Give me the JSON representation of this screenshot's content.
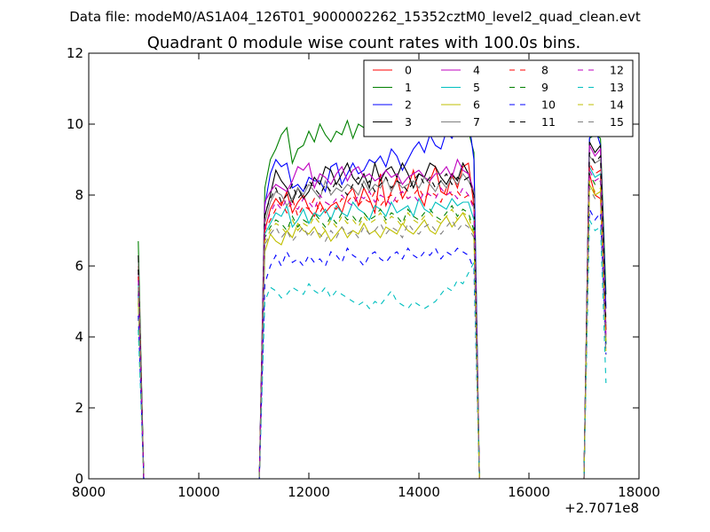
{
  "chart_data": {
    "type": "line",
    "suptitle": "Data file: modeM0/AS1A04_126T01_9000002262_15352cztM0_level2_quad_clean.evt",
    "title": "Quadrant 0 module wise count rates with 100.0s bins.",
    "xlabel": "",
    "ylabel": "",
    "x_offset_label": "+2.7071e8",
    "xlim": [
      8000,
      18000
    ],
    "ylim": [
      0,
      12
    ],
    "xticks": [
      8000,
      10000,
      12000,
      14000,
      16000,
      18000
    ],
    "yticks": [
      0,
      2,
      4,
      6,
      8,
      10,
      12
    ],
    "grid": false,
    "legend": {
      "placement": "top-right",
      "columns": 4
    },
    "x": [
      8900,
      9000,
      11100,
      11200,
      11300,
      11400,
      11500,
      11600,
      11700,
      11800,
      11900,
      12000,
      12100,
      12200,
      12300,
      12400,
      12500,
      12600,
      12700,
      12800,
      12900,
      13000,
      13100,
      13200,
      13300,
      13400,
      13500,
      13600,
      13700,
      13800,
      13900,
      14000,
      14100,
      14200,
      14300,
      14400,
      14500,
      14600,
      14700,
      14800,
      14900,
      15000,
      15100,
      16900,
      17000,
      17100,
      17200,
      17300,
      17400
    ],
    "series": [
      {
        "name": "0",
        "color": "#ff0000",
        "dash": "solid",
        "values": [
          6.0,
          0.0,
          0.0,
          7.0,
          7.6,
          7.9,
          7.7,
          8.1,
          7.5,
          7.8,
          8.0,
          7.6,
          7.4,
          7.8,
          7.5,
          7.7,
          7.8,
          7.5,
          8.0,
          8.2,
          7.7,
          8.2,
          7.9,
          7.5,
          8.6,
          7.7,
          8.1,
          8.5,
          7.9,
          8.2,
          8.7,
          8.0,
          7.7,
          8.4,
          8.8,
          8.1,
          8.0,
          8.6,
          8.2,
          8.8,
          8.9,
          7.7,
          0.0,
          0.0,
          0.0,
          8.6,
          8.0,
          7.9,
          3.8
        ]
      },
      {
        "name": "1",
        "color": "#008000",
        "dash": "solid",
        "values": [
          6.7,
          0.0,
          0.0,
          8.2,
          9.0,
          9.3,
          9.7,
          9.9,
          8.9,
          9.3,
          9.4,
          9.8,
          9.5,
          10.0,
          9.7,
          9.5,
          9.8,
          9.7,
          10.1,
          9.6,
          10.0,
          9.9,
          10.2,
          10.1,
          9.9,
          10.3,
          10.0,
          10.0,
          10.2,
          9.9,
          10.1,
          10.0,
          10.2,
          9.8,
          10.1,
          9.9,
          10.0,
          10.1,
          10.0,
          9.9,
          9.8,
          9.2,
          0.0,
          0.0,
          0.0,
          9.6,
          9.7,
          9.6,
          5.2
        ]
      },
      {
        "name": "2",
        "color": "#0000ff",
        "dash": "solid",
        "values": [
          5.2,
          0.0,
          0.0,
          7.7,
          8.6,
          9.0,
          8.8,
          8.9,
          8.2,
          8.3,
          8.1,
          8.5,
          8.4,
          8.4,
          8.1,
          8.8,
          8.9,
          8.3,
          8.6,
          8.9,
          8.6,
          8.7,
          9.0,
          8.9,
          9.1,
          8.8,
          9.3,
          9.1,
          8.7,
          9.0,
          9.3,
          9.5,
          9.2,
          9.7,
          9.4,
          9.3,
          9.8,
          9.6,
          9.9,
          9.7,
          10.2,
          9.0,
          0.0,
          0.0,
          0.0,
          9.6,
          9.9,
          9.4,
          4.8
        ]
      },
      {
        "name": "3",
        "color": "#000000",
        "dash": "solid",
        "values": [
          6.3,
          0.0,
          0.0,
          7.4,
          8.0,
          8.7,
          8.4,
          8.2,
          7.8,
          8.2,
          7.9,
          8.1,
          8.5,
          8.3,
          8.8,
          8.7,
          8.3,
          8.6,
          8.9,
          8.5,
          8.3,
          8.6,
          8.2,
          8.9,
          8.4,
          8.7,
          8.8,
          8.5,
          8.9,
          8.6,
          8.2,
          8.6,
          8.5,
          8.9,
          8.8,
          8.5,
          8.3,
          8.6,
          8.4,
          8.9,
          8.6,
          8.0,
          0.0,
          0.0,
          0.0,
          9.5,
          9.2,
          9.4,
          4.2
        ]
      },
      {
        "name": "4",
        "color": "#bf00bf",
        "dash": "solid",
        "values": [
          5.8,
          0.0,
          0.0,
          7.8,
          8.1,
          8.3,
          8.2,
          8.1,
          8.4,
          8.8,
          8.7,
          8.9,
          8.2,
          8.6,
          8.5,
          8.3,
          8.6,
          8.8,
          8.4,
          8.7,
          8.8,
          8.5,
          8.6,
          8.4,
          8.5,
          8.7,
          8.5,
          8.6,
          8.3,
          8.5,
          8.6,
          8.7,
          8.5,
          8.4,
          8.6,
          8.6,
          8.8,
          8.5,
          9.0,
          8.7,
          8.6,
          8.1,
          0.0,
          0.0,
          0.0,
          9.4,
          9.1,
          9.3,
          4.0
        ]
      },
      {
        "name": "5",
        "color": "#00bfbf",
        "dash": "solid",
        "values": [
          5.5,
          0.0,
          0.0,
          6.9,
          7.2,
          7.5,
          7.4,
          7.7,
          7.1,
          7.3,
          7.6,
          7.2,
          7.5,
          7.4,
          7.6,
          7.3,
          7.7,
          7.5,
          7.4,
          7.8,
          7.6,
          7.5,
          7.3,
          7.7,
          7.6,
          7.4,
          7.8,
          7.5,
          7.6,
          7.7,
          7.4,
          7.9,
          7.6,
          7.5,
          7.8,
          7.7,
          7.6,
          7.9,
          7.7,
          7.8,
          7.8,
          7.3,
          0.0,
          0.0,
          0.0,
          8.8,
          8.5,
          8.6,
          3.8
        ]
      },
      {
        "name": "6",
        "color": "#bfbf00",
        "dash": "solid",
        "values": [
          5.0,
          0.0,
          0.0,
          6.4,
          6.9,
          6.7,
          6.6,
          7.0,
          6.8,
          7.2,
          7.0,
          6.9,
          7.1,
          6.8,
          7.0,
          6.7,
          6.9,
          7.1,
          6.8,
          7.0,
          6.9,
          7.2,
          6.9,
          7.0,
          6.8,
          7.1,
          7.0,
          6.9,
          7.2,
          7.0,
          6.9,
          7.1,
          7.3,
          7.0,
          6.9,
          7.2,
          7.4,
          7.1,
          7.3,
          7.5,
          7.2,
          6.9,
          0.0,
          0.0,
          0.0,
          8.3,
          8.0,
          8.1,
          3.9
        ]
      },
      {
        "name": "7",
        "color": "#7f7f7f",
        "dash": "solid",
        "values": [
          6.1,
          0.0,
          0.0,
          7.2,
          7.8,
          8.1,
          8.0,
          7.7,
          7.9,
          8.2,
          8.0,
          8.3,
          8.1,
          7.9,
          8.4,
          8.0,
          8.2,
          8.1,
          8.3,
          8.2,
          8.0,
          8.4,
          8.1,
          8.3,
          8.2,
          8.5,
          8.1,
          8.4,
          8.2,
          8.3,
          8.4,
          8.2,
          8.5,
          8.3,
          8.1,
          8.4,
          8.2,
          8.5,
          8.3,
          8.6,
          8.4,
          8.1,
          0.0,
          0.0,
          0.0,
          9.1,
          8.9,
          9.0,
          4.3
        ]
      },
      {
        "name": "8",
        "color": "#ff0000",
        "dash": "dashed",
        "values": [
          5.7,
          0.0,
          0.0,
          7.0,
          7.3,
          7.6,
          7.8,
          7.5,
          7.9,
          7.4,
          7.7,
          7.6,
          7.9,
          7.5,
          7.8,
          7.7,
          7.6,
          7.9,
          7.8,
          8.0,
          7.7,
          7.9,
          7.8,
          8.1,
          7.7,
          7.9,
          8.0,
          7.8,
          8.1,
          7.9,
          8.0,
          8.2,
          7.9,
          8.1,
          8.0,
          7.8,
          8.2,
          8.0,
          8.1,
          7.9,
          8.0,
          7.7,
          0.0,
          0.0,
          0.0,
          8.9,
          8.6,
          8.7,
          4.1
        ]
      },
      {
        "name": "9",
        "color": "#008000",
        "dash": "dashed",
        "values": [
          5.3,
          0.0,
          0.0,
          6.8,
          7.1,
          7.3,
          7.2,
          7.0,
          7.4,
          7.1,
          7.3,
          7.2,
          7.5,
          7.3,
          7.1,
          7.4,
          7.2,
          7.5,
          7.3,
          7.4,
          7.2,
          7.5,
          7.3,
          7.4,
          7.6,
          7.3,
          7.5,
          7.4,
          7.2,
          7.6,
          7.4,
          7.3,
          7.5,
          7.6,
          7.4,
          7.3,
          7.5,
          7.7,
          7.4,
          7.6,
          7.5,
          7.0,
          0.0,
          0.0,
          0.0,
          8.6,
          8.3,
          8.4,
          3.7
        ]
      },
      {
        "name": "10",
        "color": "#0000ff",
        "dash": "dashed",
        "values": [
          4.6,
          0.0,
          0.0,
          5.5,
          6.0,
          6.3,
          6.0,
          6.4,
          6.1,
          6.2,
          6.0,
          6.3,
          6.1,
          6.2,
          6.0,
          6.4,
          6.3,
          6.1,
          6.5,
          6.3,
          6.2,
          6.0,
          6.3,
          6.4,
          6.2,
          6.1,
          6.3,
          6.4,
          6.2,
          6.5,
          6.3,
          6.2,
          6.4,
          6.3,
          6.5,
          6.2,
          6.4,
          6.3,
          6.5,
          6.4,
          6.3,
          5.9,
          0.0,
          0.0,
          0.0,
          7.6,
          7.3,
          7.5,
          3.5
        ]
      },
      {
        "name": "11",
        "color": "#000000",
        "dash": "dashed",
        "values": [
          5.9,
          0.0,
          0.0,
          7.5,
          7.9,
          8.2,
          7.8,
          8.0,
          8.3,
          7.9,
          8.1,
          8.4,
          8.2,
          8.0,
          8.3,
          8.1,
          8.4,
          8.2,
          8.0,
          8.3,
          8.5,
          8.2,
          8.4,
          8.1,
          8.3,
          8.5,
          8.2,
          8.4,
          8.3,
          8.1,
          8.4,
          8.6,
          8.3,
          8.5,
          8.2,
          8.4,
          8.6,
          8.3,
          8.5,
          8.4,
          8.5,
          8.0,
          0.0,
          0.0,
          0.0,
          9.2,
          8.9,
          9.1,
          4.4
        ]
      },
      {
        "name": "12",
        "color": "#bf00bf",
        "dash": "dashed",
        "values": [
          5.6,
          0.0,
          0.0,
          7.1,
          7.5,
          7.8,
          7.6,
          7.9,
          7.7,
          7.6,
          7.9,
          7.8,
          7.6,
          8.0,
          7.8,
          7.7,
          7.9,
          8.0,
          7.8,
          7.7,
          8.0,
          7.9,
          8.1,
          7.8,
          8.0,
          7.9,
          7.7,
          8.0,
          8.1,
          7.9,
          8.0,
          7.8,
          8.1,
          8.0,
          7.9,
          8.2,
          8.0,
          8.1,
          7.9,
          8.2,
          8.0,
          7.6,
          0.0,
          0.0,
          0.0,
          8.7,
          8.4,
          8.5,
          4.0
        ]
      },
      {
        "name": "13",
        "color": "#00bfbf",
        "dash": "dashed",
        "values": [
          4.2,
          0.0,
          0.0,
          5.0,
          5.4,
          5.3,
          5.1,
          5.2,
          5.4,
          5.3,
          5.2,
          5.5,
          5.3,
          5.2,
          5.4,
          5.1,
          5.3,
          5.2,
          5.1,
          5.0,
          4.9,
          5.0,
          4.8,
          5.0,
          4.9,
          5.1,
          5.3,
          5.0,
          4.9,
          4.8,
          5.0,
          4.9,
          4.8,
          4.9,
          5.0,
          5.2,
          5.4,
          5.3,
          5.6,
          5.5,
          5.8,
          6.1,
          0.0,
          0.0,
          0.0,
          7.3,
          7.0,
          7.1,
          2.7
        ]
      },
      {
        "name": "14",
        "color": "#bfbf00",
        "dash": "dashed",
        "values": [
          5.1,
          0.0,
          0.0,
          6.7,
          7.0,
          7.2,
          7.1,
          6.9,
          7.3,
          7.0,
          7.2,
          7.1,
          7.4,
          7.2,
          7.0,
          7.3,
          7.1,
          7.4,
          7.2,
          7.3,
          7.1,
          7.4,
          7.2,
          7.3,
          7.5,
          7.2,
          7.4,
          7.3,
          7.1,
          7.5,
          7.3,
          7.2,
          7.4,
          7.5,
          7.3,
          7.2,
          7.4,
          7.6,
          7.3,
          7.5,
          7.4,
          6.9,
          0.0,
          0.0,
          0.0,
          8.4,
          8.1,
          8.2,
          3.6
        ]
      },
      {
        "name": "15",
        "color": "#7f7f7f",
        "dash": "dashed",
        "values": [
          5.4,
          0.0,
          0.0,
          6.6,
          6.9,
          7.1,
          6.8,
          7.0,
          6.7,
          6.9,
          7.1,
          6.8,
          7.0,
          6.9,
          6.7,
          7.0,
          6.8,
          7.1,
          6.9,
          7.0,
          6.8,
          7.1,
          6.9,
          7.0,
          7.2,
          6.9,
          7.1,
          7.0,
          6.8,
          7.2,
          7.0,
          6.9,
          7.1,
          7.2,
          7.0,
          6.9,
          7.1,
          7.3,
          7.0,
          7.2,
          7.1,
          6.8,
          0.0,
          0.0,
          0.0,
          8.2,
          7.9,
          8.0,
          3.5
        ]
      }
    ]
  }
}
